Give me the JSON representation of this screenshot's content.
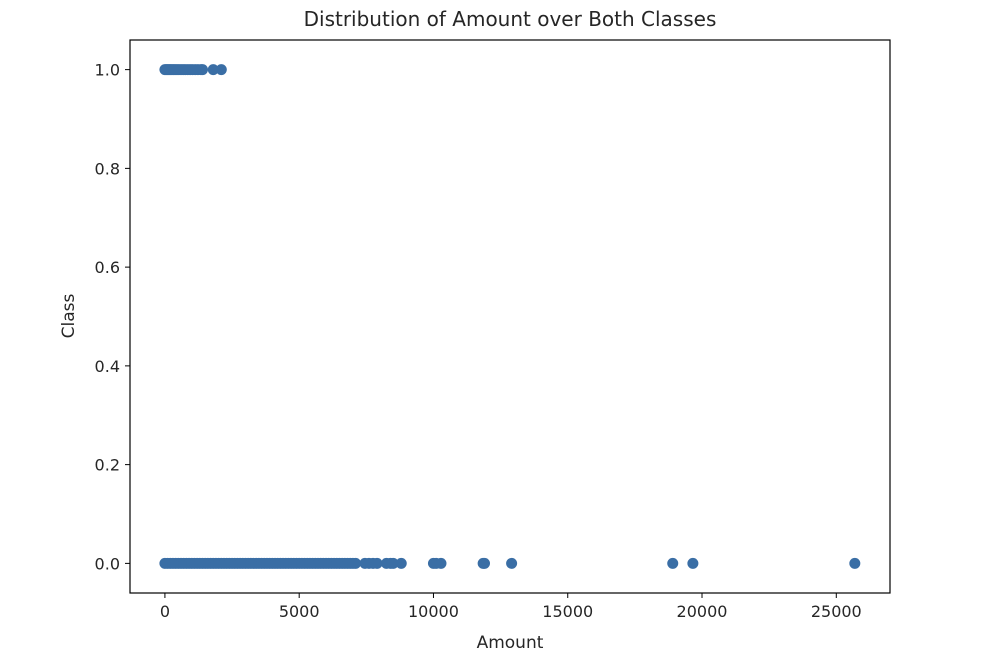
{
  "chart_data": {
    "type": "scatter",
    "title": "Distribution of Amount over Both Classes",
    "xlabel": "Amount",
    "ylabel": "Class",
    "xlim": [
      -1300,
      27000
    ],
    "ylim": [
      -0.06,
      1.06
    ],
    "xticks": [
      0,
      5000,
      10000,
      15000,
      20000,
      25000
    ],
    "xtick_labels": [
      "0",
      "5000",
      "10000",
      "15000",
      "20000",
      "25000"
    ],
    "yticks": [
      0.0,
      0.2,
      0.4,
      0.6,
      0.8,
      1.0
    ],
    "ytick_labels": [
      "0.0",
      "0.2",
      "0.4",
      "0.6",
      "0.8",
      "1.0"
    ],
    "grid": false,
    "marker_color": "#3a6ea5",
    "series": [
      {
        "points": [
          {
            "x": 0,
            "y": 1
          },
          {
            "x": 50,
            "y": 1
          },
          {
            "x": 100,
            "y": 1
          },
          {
            "x": 150,
            "y": 1
          },
          {
            "x": 200,
            "y": 1
          },
          {
            "x": 260,
            "y": 1
          },
          {
            "x": 320,
            "y": 1
          },
          {
            "x": 380,
            "y": 1
          },
          {
            "x": 450,
            "y": 1
          },
          {
            "x": 520,
            "y": 1
          },
          {
            "x": 600,
            "y": 1
          },
          {
            "x": 680,
            "y": 1
          },
          {
            "x": 760,
            "y": 1
          },
          {
            "x": 850,
            "y": 1
          },
          {
            "x": 940,
            "y": 1
          },
          {
            "x": 1030,
            "y": 1
          },
          {
            "x": 1130,
            "y": 1
          },
          {
            "x": 1230,
            "y": 1
          },
          {
            "x": 1340,
            "y": 1
          },
          {
            "x": 1400,
            "y": 1
          },
          {
            "x": 1800,
            "y": 1
          },
          {
            "x": 2100,
            "y": 1
          },
          {
            "x": 0,
            "y": 0
          },
          {
            "x": 100,
            "y": 0
          },
          {
            "x": 200,
            "y": 0
          },
          {
            "x": 300,
            "y": 0
          },
          {
            "x": 400,
            "y": 0
          },
          {
            "x": 500,
            "y": 0
          },
          {
            "x": 600,
            "y": 0
          },
          {
            "x": 700,
            "y": 0
          },
          {
            "x": 800,
            "y": 0
          },
          {
            "x": 900,
            "y": 0
          },
          {
            "x": 1000,
            "y": 0
          },
          {
            "x": 1100,
            "y": 0
          },
          {
            "x": 1200,
            "y": 0
          },
          {
            "x": 1300,
            "y": 0
          },
          {
            "x": 1400,
            "y": 0
          },
          {
            "x": 1500,
            "y": 0
          },
          {
            "x": 1600,
            "y": 0
          },
          {
            "x": 1700,
            "y": 0
          },
          {
            "x": 1800,
            "y": 0
          },
          {
            "x": 1900,
            "y": 0
          },
          {
            "x": 2000,
            "y": 0
          },
          {
            "x": 2100,
            "y": 0
          },
          {
            "x": 2200,
            "y": 0
          },
          {
            "x": 2300,
            "y": 0
          },
          {
            "x": 2400,
            "y": 0
          },
          {
            "x": 2500,
            "y": 0
          },
          {
            "x": 2600,
            "y": 0
          },
          {
            "x": 2700,
            "y": 0
          },
          {
            "x": 2800,
            "y": 0
          },
          {
            "x": 2900,
            "y": 0
          },
          {
            "x": 3000,
            "y": 0
          },
          {
            "x": 3100,
            "y": 0
          },
          {
            "x": 3200,
            "y": 0
          },
          {
            "x": 3300,
            "y": 0
          },
          {
            "x": 3400,
            "y": 0
          },
          {
            "x": 3500,
            "y": 0
          },
          {
            "x": 3600,
            "y": 0
          },
          {
            "x": 3700,
            "y": 0
          },
          {
            "x": 3800,
            "y": 0
          },
          {
            "x": 3900,
            "y": 0
          },
          {
            "x": 4000,
            "y": 0
          },
          {
            "x": 4100,
            "y": 0
          },
          {
            "x": 4200,
            "y": 0
          },
          {
            "x": 4300,
            "y": 0
          },
          {
            "x": 4400,
            "y": 0
          },
          {
            "x": 4500,
            "y": 0
          },
          {
            "x": 4600,
            "y": 0
          },
          {
            "x": 4700,
            "y": 0
          },
          {
            "x": 4800,
            "y": 0
          },
          {
            "x": 4900,
            "y": 0
          },
          {
            "x": 5000,
            "y": 0
          },
          {
            "x": 5100,
            "y": 0
          },
          {
            "x": 5200,
            "y": 0
          },
          {
            "x": 5300,
            "y": 0
          },
          {
            "x": 5400,
            "y": 0
          },
          {
            "x": 5500,
            "y": 0
          },
          {
            "x": 5600,
            "y": 0
          },
          {
            "x": 5700,
            "y": 0
          },
          {
            "x": 5800,
            "y": 0
          },
          {
            "x": 5900,
            "y": 0
          },
          {
            "x": 6000,
            "y": 0
          },
          {
            "x": 6100,
            "y": 0
          },
          {
            "x": 6200,
            "y": 0
          },
          {
            "x": 6300,
            "y": 0
          },
          {
            "x": 6400,
            "y": 0
          },
          {
            "x": 6500,
            "y": 0
          },
          {
            "x": 6600,
            "y": 0
          },
          {
            "x": 6700,
            "y": 0
          },
          {
            "x": 6800,
            "y": 0
          },
          {
            "x": 6900,
            "y": 0
          },
          {
            "x": 7000,
            "y": 0
          },
          {
            "x": 7100,
            "y": 0
          },
          {
            "x": 7450,
            "y": 0
          },
          {
            "x": 7600,
            "y": 0
          },
          {
            "x": 7750,
            "y": 0
          },
          {
            "x": 7900,
            "y": 0
          },
          {
            "x": 8250,
            "y": 0
          },
          {
            "x": 8400,
            "y": 0
          },
          {
            "x": 8500,
            "y": 0
          },
          {
            "x": 8800,
            "y": 0
          },
          {
            "x": 10000,
            "y": 0
          },
          {
            "x": 10100,
            "y": 0
          },
          {
            "x": 10280,
            "y": 0
          },
          {
            "x": 11850,
            "y": 0
          },
          {
            "x": 11900,
            "y": 0
          },
          {
            "x": 12910,
            "y": 0
          },
          {
            "x": 18910,
            "y": 0
          },
          {
            "x": 19660,
            "y": 0
          },
          {
            "x": 25690,
            "y": 0
          }
        ]
      }
    ]
  }
}
